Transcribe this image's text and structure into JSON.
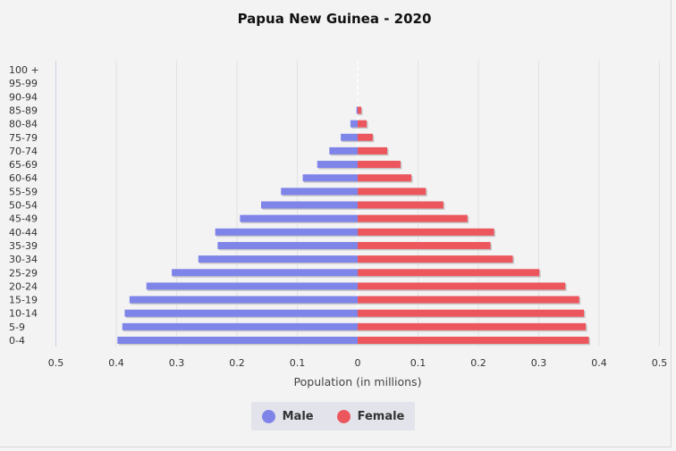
{
  "chart_data": {
    "type": "bar",
    "title": "Papua New Guinea - 2020",
    "xlabel": "Population (in millions)",
    "ylabel": "",
    "orientation": "horizontal-diverging",
    "xlim": [
      -0.5,
      0.5
    ],
    "x_ticks": [
      "0.5",
      "0.4",
      "0.3",
      "0.2",
      "0.1",
      "0",
      "0.1",
      "0.2",
      "0.3",
      "0.4",
      "0.5"
    ],
    "categories": [
      "100 +",
      "95-99",
      "90-94",
      "85-89",
      "80-84",
      "75-79",
      "70-74",
      "65-69",
      "60-64",
      "55-59",
      "50-54",
      "45-49",
      "40-44",
      "35-39",
      "30-34",
      "25-29",
      "20-24",
      "15-19",
      "10-14",
      "5-9",
      "0-4"
    ],
    "series": [
      {
        "name": "Male",
        "color": "#7f85e8",
        "values": [
          0,
          0,
          0,
          0.002,
          0.012,
          0.028,
          0.047,
          0.067,
          0.091,
          0.127,
          0.16,
          0.195,
          0.236,
          0.232,
          0.264,
          0.308,
          0.35,
          0.378,
          0.386,
          0.39,
          0.398
        ]
      },
      {
        "name": "Female",
        "color": "#ec575e",
        "values": [
          0,
          0,
          0,
          0.006,
          0.015,
          0.025,
          0.049,
          0.071,
          0.089,
          0.113,
          0.142,
          0.182,
          0.226,
          0.22,
          0.257,
          0.301,
          0.344,
          0.367,
          0.375,
          0.378,
          0.383
        ]
      }
    ],
    "legend_position": "bottom-center",
    "grid": true
  },
  "legend": {
    "male_label": "Male",
    "female_label": "Female",
    "male_color": "#7f85e8",
    "female_color": "#ec575e"
  }
}
